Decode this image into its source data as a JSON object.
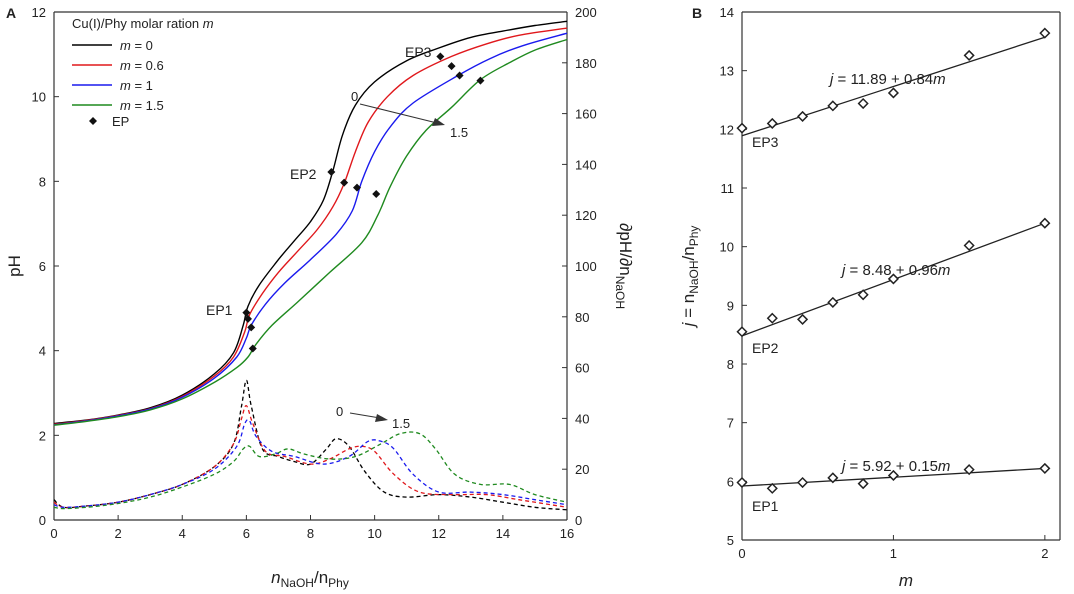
{
  "chart_data": [
    {
      "panel": "A",
      "type": "line",
      "xlabel_base": "n",
      "xlabel_sub1": "NaOH",
      "xlabel_mid": "/n",
      "xlabel_sub2": "Phy",
      "ylabel": "pH",
      "y2label_base": "∂pH/∂n",
      "y2label_sub": "NaOH",
      "xlim": [
        0,
        16
      ],
      "ylim": [
        0,
        12
      ],
      "y2lim": [
        0,
        200
      ],
      "xticks": [
        0,
        2,
        4,
        6,
        8,
        10,
        12,
        14,
        16
      ],
      "yticks": [
        0,
        2,
        4,
        6,
        8,
        10,
        12
      ],
      "y2ticks": [
        0,
        20,
        40,
        60,
        80,
        100,
        120,
        140,
        160,
        180,
        200
      ],
      "legend_title_prefix": "Cu(I)/Phy molar ration ",
      "legend_title_var": "m",
      "legend_var": "m",
      "ep_legend": "EP",
      "series": [
        {
          "name": "= 0",
          "m": 0,
          "color": "#000000",
          "ph": [
            [
              0,
              2.28
            ],
            [
              1,
              2.36
            ],
            [
              2,
              2.48
            ],
            [
              3,
              2.65
            ],
            [
              4,
              2.95
            ],
            [
              5,
              3.45
            ],
            [
              5.6,
              3.95
            ],
            [
              5.9,
              4.6
            ],
            [
              6.05,
              5.05
            ],
            [
              6.4,
              5.55
            ],
            [
              7,
              6.15
            ],
            [
              7.5,
              6.6
            ],
            [
              8,
              7.05
            ],
            [
              8.4,
              7.55
            ],
            [
              8.7,
              8.25
            ],
            [
              9,
              9.1
            ],
            [
              9.4,
              9.8
            ],
            [
              10,
              10.35
            ],
            [
              11,
              10.85
            ],
            [
              12,
              11.15
            ],
            [
              13,
              11.4
            ],
            [
              14,
              11.55
            ],
            [
              15,
              11.68
            ],
            [
              16,
              11.78
            ]
          ],
          "deriv": [
            [
              0,
              8
            ],
            [
              0.3,
              5
            ],
            [
              1,
              5.5
            ],
            [
              2,
              7
            ],
            [
              3,
              10
            ],
            [
              4,
              14
            ],
            [
              5,
              21
            ],
            [
              5.6,
              30
            ],
            [
              5.85,
              45
            ],
            [
              6,
              55
            ],
            [
              6.15,
              45
            ],
            [
              6.5,
              28
            ],
            [
              7,
              25
            ],
            [
              7.5,
              23
            ],
            [
              8,
              22
            ],
            [
              8.5,
              28
            ],
            [
              8.8,
              32
            ],
            [
              9.2,
              29
            ],
            [
              9.7,
              19
            ],
            [
              10.3,
              11
            ],
            [
              11,
              9
            ],
            [
              12,
              10
            ],
            [
              13,
              9
            ],
            [
              14,
              7
            ],
            [
              15,
              5
            ],
            [
              16,
              4
            ]
          ],
          "ep": [
            [
              6,
              4.9
            ],
            [
              8.65,
              8.22
            ],
            [
              12.05,
              10.95
            ]
          ]
        },
        {
          "name": "= 0.6",
          "m": 0.6,
          "color": "#e0181c",
          "ph": [
            [
              0,
              2.26
            ],
            [
              1,
              2.35
            ],
            [
              2,
              2.47
            ],
            [
              3,
              2.63
            ],
            [
              4,
              2.92
            ],
            [
              5,
              3.4
            ],
            [
              5.6,
              3.85
            ],
            [
              5.95,
              4.45
            ],
            [
              6.1,
              4.85
            ],
            [
              6.5,
              5.35
            ],
            [
              7,
              5.85
            ],
            [
              7.6,
              6.35
            ],
            [
              8.2,
              6.85
            ],
            [
              8.7,
              7.4
            ],
            [
              9.05,
              7.95
            ],
            [
              9.4,
              8.7
            ],
            [
              9.8,
              9.4
            ],
            [
              10.4,
              10.0
            ],
            [
              11.2,
              10.5
            ],
            [
              12.4,
              10.95
            ],
            [
              13.5,
              11.25
            ],
            [
              14.5,
              11.45
            ],
            [
              16,
              11.62
            ]
          ],
          "deriv": [
            [
              0,
              7
            ],
            [
              0.3,
              5
            ],
            [
              1,
              5.5
            ],
            [
              2,
              7
            ],
            [
              3,
              10
            ],
            [
              4,
              14
            ],
            [
              5,
              21
            ],
            [
              5.6,
              30
            ],
            [
              5.85,
              40
            ],
            [
              6,
              45
            ],
            [
              6.2,
              38
            ],
            [
              6.6,
              27
            ],
            [
              7.2,
              25
            ],
            [
              8,
              22
            ],
            [
              8.6,
              24
            ],
            [
              9.2,
              28
            ],
            [
              9.6,
              29
            ],
            [
              10,
              27
            ],
            [
              10.6,
              18
            ],
            [
              11.4,
              11
            ],
            [
              12.5,
              10
            ],
            [
              13.5,
              10
            ],
            [
              14.5,
              8
            ],
            [
              16,
              5
            ]
          ],
          "ep": [
            [
              6.05,
              4.75
            ],
            [
              9.05,
              7.97
            ],
            [
              12.4,
              10.72
            ]
          ]
        },
        {
          "name": "= 1",
          "m": 1,
          "color": "#1a1aee",
          "ph": [
            [
              0,
              2.25
            ],
            [
              1,
              2.34
            ],
            [
              2,
              2.46
            ],
            [
              3,
              2.62
            ],
            [
              4,
              2.9
            ],
            [
              5,
              3.35
            ],
            [
              5.7,
              3.85
            ],
            [
              6,
              4.3
            ],
            [
              6.15,
              4.6
            ],
            [
              6.6,
              5.1
            ],
            [
              7.2,
              5.6
            ],
            [
              8,
              6.15
            ],
            [
              8.8,
              6.75
            ],
            [
              9.3,
              7.3
            ],
            [
              9.6,
              8.0
            ],
            [
              10,
              8.7
            ],
            [
              10.5,
              9.3
            ],
            [
              11.2,
              9.85
            ],
            [
              12.6,
              10.5
            ],
            [
              13.6,
              10.9
            ],
            [
              14.6,
              11.2
            ],
            [
              16,
              11.5
            ]
          ],
          "deriv": [
            [
              0,
              6
            ],
            [
              0.3,
              5
            ],
            [
              1,
              5.5
            ],
            [
              2,
              7
            ],
            [
              3,
              10
            ],
            [
              4,
              14
            ],
            [
              5,
              20
            ],
            [
              5.7,
              29
            ],
            [
              5.95,
              38
            ],
            [
              6.1,
              39
            ],
            [
              6.3,
              33
            ],
            [
              6.8,
              27
            ],
            [
              7.5,
              25
            ],
            [
              8.4,
              22
            ],
            [
              9.2,
              25
            ],
            [
              9.8,
              31
            ],
            [
              10.2,
              31
            ],
            [
              10.6,
              28
            ],
            [
              11.2,
              18
            ],
            [
              12,
              11
            ],
            [
              13,
              11
            ],
            [
              14,
              10
            ],
            [
              15,
              8
            ],
            [
              16,
              6
            ]
          ],
          "ep": [
            [
              6.15,
              4.55
            ],
            [
              9.45,
              7.85
            ],
            [
              12.65,
              10.5
            ]
          ]
        },
        {
          "name": "= 1.5",
          "m": 1.5,
          "color": "#1f8a1f",
          "ph": [
            [
              0,
              2.24
            ],
            [
              1,
              2.33
            ],
            [
              2,
              2.44
            ],
            [
              3,
              2.6
            ],
            [
              4,
              2.86
            ],
            [
              5,
              3.25
            ],
            [
              5.7,
              3.6
            ],
            [
              6.05,
              3.85
            ],
            [
              6.3,
              4.15
            ],
            [
              6.8,
              4.6
            ],
            [
              7.6,
              5.15
            ],
            [
              8.6,
              5.85
            ],
            [
              9.6,
              6.55
            ],
            [
              10.1,
              7.2
            ],
            [
              10.5,
              7.9
            ],
            [
              11,
              8.6
            ],
            [
              11.6,
              9.2
            ],
            [
              12.4,
              9.75
            ],
            [
              13.3,
              10.4
            ],
            [
              14.2,
              10.8
            ],
            [
              15,
              11.1
            ],
            [
              16,
              11.35
            ]
          ],
          "deriv": [
            [
              0,
              5
            ],
            [
              0.3,
              4.5
            ],
            [
              1,
              5
            ],
            [
              2,
              6.5
            ],
            [
              3,
              9
            ],
            [
              4,
              13
            ],
            [
              5,
              18
            ],
            [
              5.6,
              23
            ],
            [
              5.9,
              28
            ],
            [
              6.1,
              29
            ],
            [
              6.4,
              25
            ],
            [
              6.9,
              26
            ],
            [
              7.3,
              28
            ],
            [
              7.8,
              26
            ],
            [
              8.6,
              24
            ],
            [
              9.4,
              25
            ],
            [
              10.2,
              30
            ],
            [
              10.8,
              34
            ],
            [
              11.4,
              34
            ],
            [
              11.9,
              28
            ],
            [
              12.5,
              18
            ],
            [
              13.3,
              14
            ],
            [
              14.2,
              14
            ],
            [
              15,
              10
            ],
            [
              16,
              7
            ]
          ],
          "ep": [
            [
              6.2,
              4.05
            ],
            [
              10.05,
              7.7
            ],
            [
              13.3,
              10.38
            ]
          ]
        }
      ],
      "annotations": {
        "upper_start": "0",
        "upper_end": "1.5",
        "lower_start": "0",
        "lower_end": "1.5"
      },
      "ep_names": [
        "EP1",
        "EP2",
        "EP3"
      ]
    },
    {
      "panel": "B",
      "type": "scatter",
      "xlabel": "m",
      "ylabel_prefix": "j",
      "ylabel_eq": " = n",
      "ylabel_sub1": "NaOH",
      "ylabel_mid": "/n",
      "ylabel_sub2": "Phy",
      "xlim": [
        0,
        2.1
      ],
      "ylim": [
        5,
        14
      ],
      "xticks": [
        0,
        1,
        2
      ],
      "yticks": [
        5,
        6,
        7,
        8,
        9,
        10,
        11,
        12,
        13,
        14
      ],
      "x": [
        0,
        0.2,
        0.4,
        0.6,
        0.8,
        1,
        1.5,
        2
      ],
      "series": [
        {
          "name": "EP1",
          "values": [
            5.98,
            5.88,
            5.98,
            6.06,
            5.96,
            6.1,
            6.2,
            6.22
          ],
          "fit": {
            "intercept": 5.92,
            "slope": 0.15
          },
          "eq_text": " = 5.92 + 0.15"
        },
        {
          "name": "EP2",
          "values": [
            8.55,
            8.78,
            8.76,
            9.05,
            9.18,
            9.45,
            10.02,
            10.4
          ],
          "fit": {
            "intercept": 8.48,
            "slope": 0.96
          },
          "eq_text": " = 8.48 + 0.96"
        },
        {
          "name": "EP3",
          "values": [
            12.02,
            12.1,
            12.22,
            12.4,
            12.44,
            12.62,
            13.26,
            13.64
          ],
          "fit": {
            "intercept": 11.89,
            "slope": 0.84
          },
          "eq_text": " = 11.89 + 0.84"
        }
      ],
      "eq_var_j": "j",
      "eq_var_m": "m"
    }
  ]
}
